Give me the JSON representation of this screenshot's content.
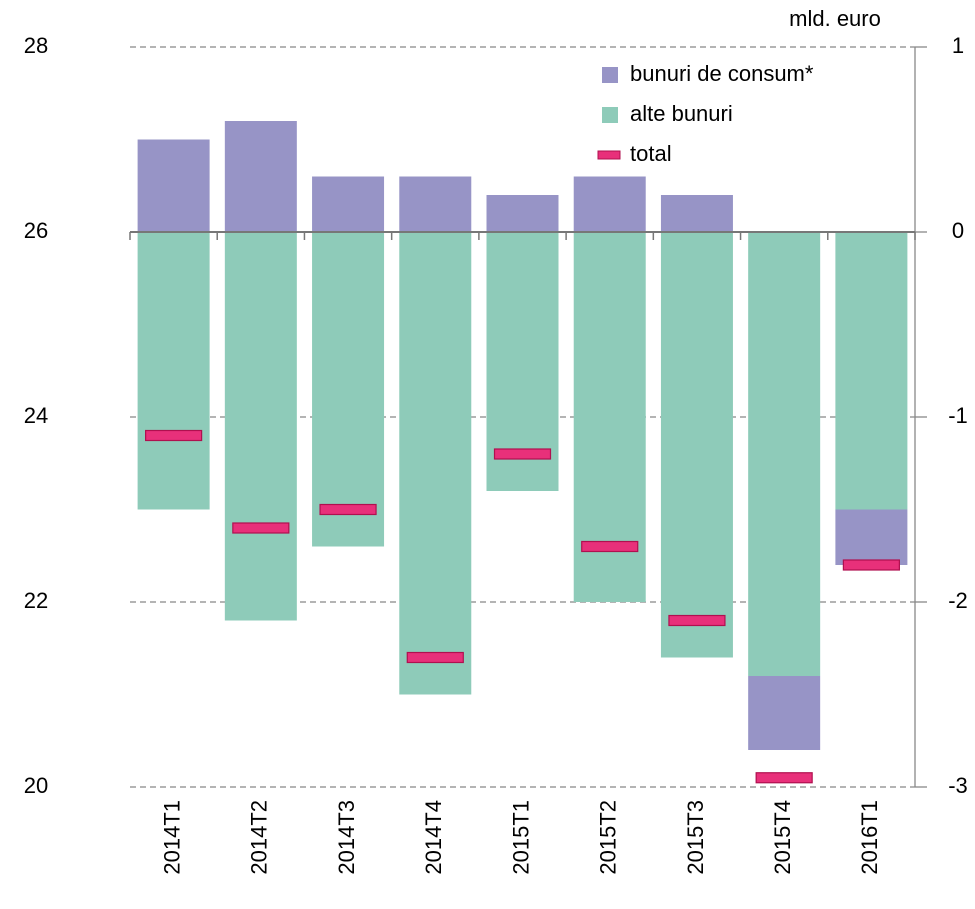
{
  "chart_data": {
    "type": "bar",
    "stacked": true,
    "y2label": "mld. euro",
    "categories": [
      "2014T1",
      "2014T2",
      "2014T3",
      "2014T4",
      "2015T1",
      "2015T2",
      "2015T3",
      "2015T4",
      "2016T1"
    ],
    "series": [
      {
        "name": "bunuri de consum*",
        "color": "#9794c6",
        "axis": "y2",
        "values": [
          0.5,
          0.6,
          0.3,
          0.3,
          0.2,
          0.3,
          0.2,
          -0.4,
          -0.3
        ]
      },
      {
        "name": "alte bunuri",
        "color": "#8ecbb9",
        "axis": "y2",
        "values": [
          -1.5,
          -2.1,
          -1.7,
          -2.5,
          -1.4,
          -2.0,
          -2.3,
          -2.4,
          -1.5
        ]
      },
      {
        "name": "total",
        "color": "#e8307a",
        "axis": "y2",
        "type": "marker",
        "values": [
          -1.1,
          -1.6,
          -1.5,
          -2.3,
          -1.2,
          -1.7,
          -2.1,
          -2.95,
          -1.8
        ]
      }
    ],
    "ylim": [
      20,
      28
    ],
    "yticks": [
      20,
      22,
      24,
      26,
      28
    ],
    "y2lim": [
      -3,
      1
    ],
    "y2ticks": [
      -3,
      -2,
      -1,
      0,
      1
    ],
    "grid": true,
    "legend": "top-right"
  }
}
